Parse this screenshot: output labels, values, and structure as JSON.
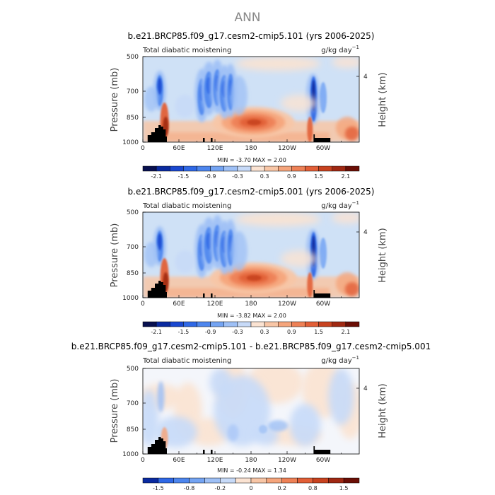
{
  "figure_title": "ANN",
  "chart_data": [
    {
      "type": "heatmap",
      "title": "b.e21.BRCP85.f09_g17.cesm2-cmip5.101 (yrs 2006-2025)",
      "left_subtitle": "Total diabatic moistening",
      "units_base": "g/kg day",
      "units_exp": "−1",
      "ylabel": "Pressure (mb)",
      "ylabel_right": "Height (km)",
      "xtick_labels": [
        "0",
        "60E",
        "120E",
        "180",
        "120W",
        "60W"
      ],
      "ytick_labels": [
        "500",
        "700",
        "850",
        "1000"
      ],
      "right_tick_labels": [
        "4"
      ],
      "minmax": "MIN =   -3.70   MAX =    2.00",
      "colorbar_labels": [
        "-2.1",
        "-1.5",
        "-0.9",
        "-0.3",
        "0.3",
        "0.9",
        "1.5",
        "2.1"
      ],
      "colorbar_levels": [
        -2.4,
        -2.1,
        -1.8,
        -1.5,
        -1.2,
        -0.9,
        -0.6,
        -0.3,
        0,
        0.3,
        0.6,
        0.9,
        1.2,
        1.5,
        1.8,
        2.1,
        2.4
      ],
      "xlim": [
        0,
        360
      ],
      "ylim": [
        1000,
        500
      ],
      "min": -3.7,
      "max": 2.0
    },
    {
      "type": "heatmap",
      "title": "b.e21.BRCP85.f09_g17.cesm2-cmip5.001 (yrs 2006-2025)",
      "left_subtitle": "Total diabatic moistening",
      "units_base": "g/kg day",
      "units_exp": "−1",
      "ylabel": "Pressure (mb)",
      "ylabel_right": "Height (km)",
      "xtick_labels": [
        "0",
        "60E",
        "120E",
        "180",
        "120W",
        "60W"
      ],
      "ytick_labels": [
        "500",
        "700",
        "850",
        "1000"
      ],
      "right_tick_labels": [
        "4"
      ],
      "minmax": "MIN =   -3.82   MAX =    2.00",
      "colorbar_labels": [
        "-2.1",
        "-1.5",
        "-0.9",
        "-0.3",
        "0.3",
        "0.9",
        "1.5",
        "2.1"
      ],
      "colorbar_levels": [
        -2.4,
        -2.1,
        -1.8,
        -1.5,
        -1.2,
        -0.9,
        -0.6,
        -0.3,
        0,
        0.3,
        0.6,
        0.9,
        1.2,
        1.5,
        1.8,
        2.1,
        2.4
      ],
      "xlim": [
        0,
        360
      ],
      "ylim": [
        1000,
        500
      ],
      "min": -3.82,
      "max": 2.0
    },
    {
      "type": "heatmap",
      "title": "b.e21.BRCP85.f09_g17.cesm2-cmip5.101 - b.e21.BRCP85.f09_g17.cesm2-cmip5.001",
      "left_subtitle": "Total diabatic moistening",
      "units_base": "g/kg day",
      "units_exp": "−1",
      "ylabel": "Pressure (mb)",
      "ylabel_right": "Height (km)",
      "xtick_labels": [
        "0",
        "60E",
        "120E",
        "180",
        "120W",
        "60W"
      ],
      "ytick_labels": [
        "500",
        "700",
        "850",
        "1000"
      ],
      "right_tick_labels": [
        "4"
      ],
      "minmax": "MIN =   -0.24   MAX =    1.34",
      "colorbar_labels": [
        "-1.5",
        "-0.8",
        "-0.2",
        "0",
        "0.2",
        "0.8",
        "1.5"
      ],
      "colorbar_levels": [
        -2.0,
        -1.5,
        -1.2,
        -0.8,
        -0.5,
        -0.2,
        -0.1,
        0,
        0.1,
        0.2,
        0.5,
        0.8,
        1.2,
        1.5,
        2.0
      ],
      "xlim": [
        0,
        360
      ],
      "ylim": [
        1000,
        500
      ],
      "min": -0.24,
      "max": 1.34
    }
  ],
  "colors": {
    "background": "#ffffff",
    "light_fill": "#cfe1f6",
    "colorbar_diverging": [
      "#08104f",
      "#0a2aa0",
      "#1a48d0",
      "#2f68e6",
      "#4d86ee",
      "#74a4f3",
      "#9ec0f6",
      "#c7daf8",
      "#fbe3d2",
      "#f8c6a6",
      "#f5a57c",
      "#ee8156",
      "#e25f37",
      "#c8421f",
      "#a02812",
      "#6b0e05"
    ],
    "terrain": "#000000"
  }
}
